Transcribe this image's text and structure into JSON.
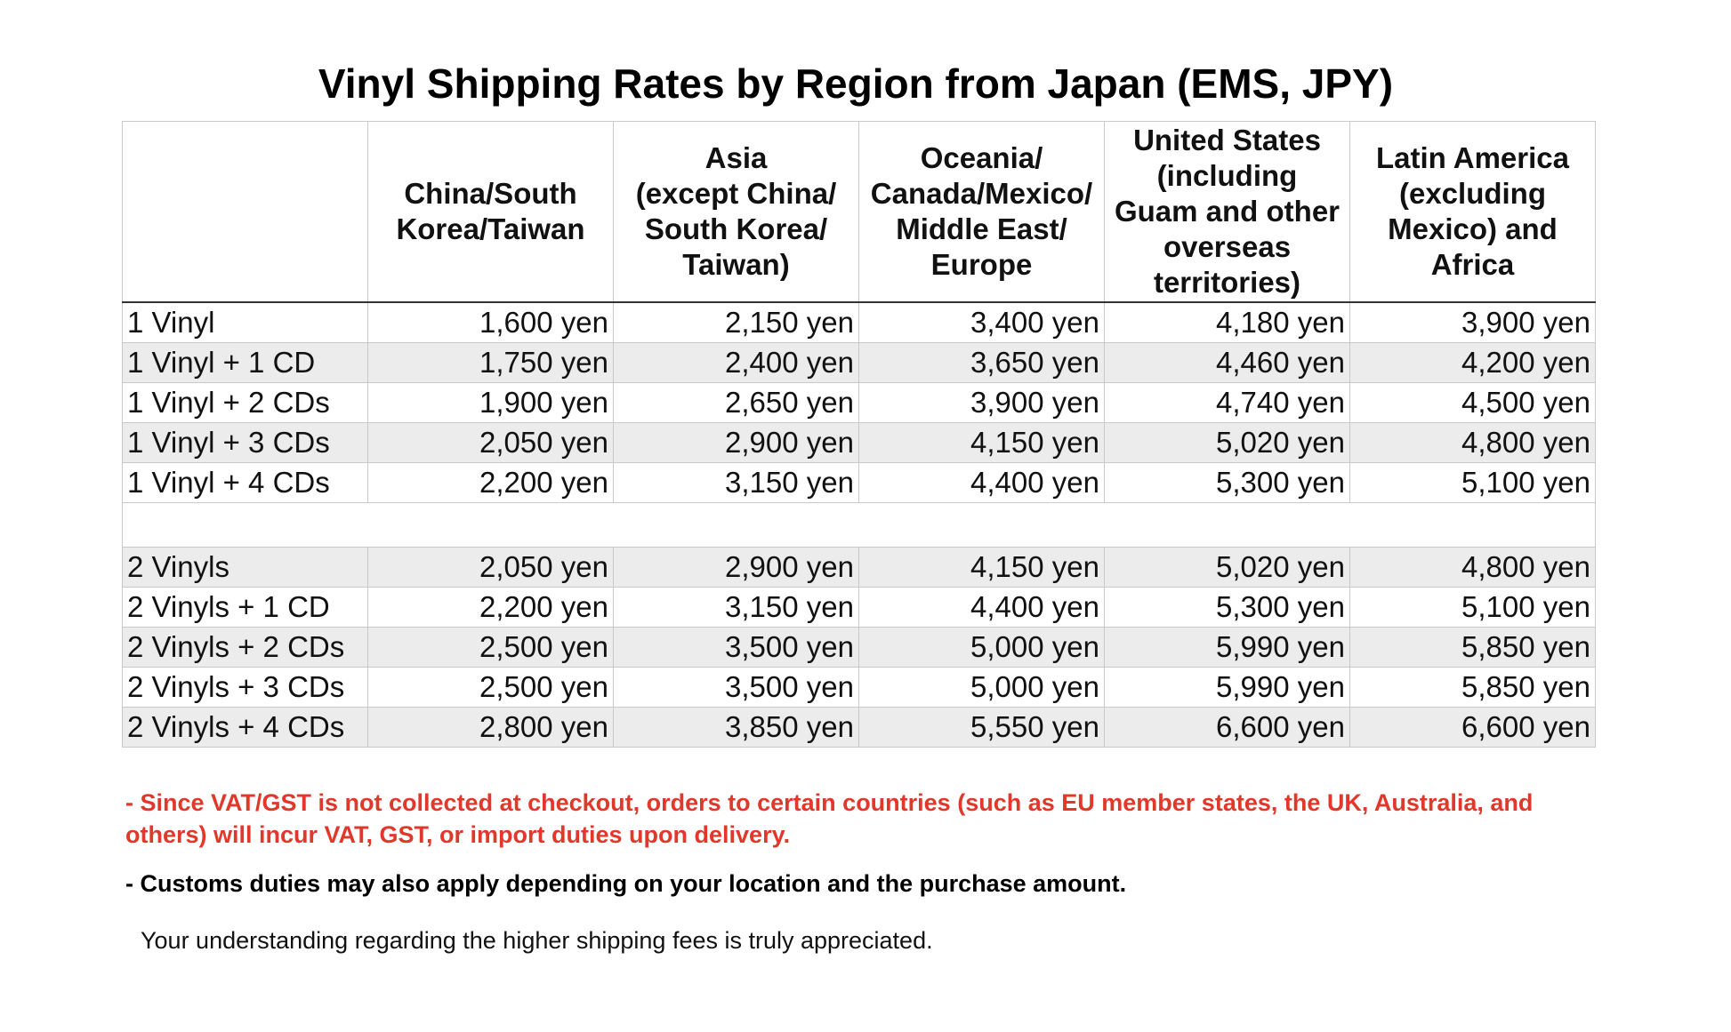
{
  "title": "Vinyl Shipping Rates by Region from Japan (EMS, JPY)",
  "columns": [
    "",
    "China/South\nKorea/Taiwan",
    "Asia\n(except China/\nSouth Korea/\nTaiwan)",
    "Oceania/\nCanada/Mexico/\nMiddle East/\nEurope",
    "United States\n(including\nGuam and other\noverseas\nterritories)",
    "Latin America\n(excluding\nMexico) and\nAfrica"
  ],
  "rows": [
    {
      "label": "1 Vinyl",
      "values": [
        "1,600 yen",
        "2,150 yen",
        "3,400 yen",
        "4,180 yen",
        "3,900 yen"
      ]
    },
    {
      "label": "1 Vinyl + 1 CD",
      "values": [
        "1,750 yen",
        "2,400 yen",
        "3,650 yen",
        "4,460 yen",
        "4,200 yen"
      ]
    },
    {
      "label": "1 Vinyl + 2 CDs",
      "values": [
        "1,900 yen",
        "2,650 yen",
        "3,900 yen",
        "4,740 yen",
        "4,500 yen"
      ]
    },
    {
      "label": "1 Vinyl + 3 CDs",
      "values": [
        "2,050 yen",
        "2,900 yen",
        "4,150 yen",
        "5,020 yen",
        "4,800 yen"
      ]
    },
    {
      "label": "1 Vinyl + 4 CDs",
      "values": [
        "2,200 yen",
        "3,150 yen",
        "4,400 yen",
        "5,300 yen",
        "5,100 yen"
      ]
    },
    {
      "label": "",
      "values": [
        "",
        "",
        "",
        "",
        ""
      ]
    },
    {
      "label": "2 Vinyls",
      "values": [
        "2,050 yen",
        "2,900 yen",
        "4,150 yen",
        "5,020 yen",
        "4,800 yen"
      ]
    },
    {
      "label": "2 Vinyls + 1 CD",
      "values": [
        "2,200 yen",
        "3,150 yen",
        "4,400 yen",
        "5,300 yen",
        "5,100 yen"
      ]
    },
    {
      "label": "2 Vinyls + 2 CDs",
      "values": [
        "2,500 yen",
        "3,500 yen",
        "5,000 yen",
        "5,990 yen",
        "5,850 yen"
      ]
    },
    {
      "label": "2 Vinyls + 3 CDs",
      "values": [
        "2,500 yen",
        "3,500 yen",
        "5,000 yen",
        "5,990 yen",
        "5,850 yen"
      ]
    },
    {
      "label": "2 Vinyls + 4 CDs",
      "values": [
        "2,800 yen",
        "3,850 yen",
        "5,550 yen",
        "6,600 yen",
        "6,600 yen"
      ]
    }
  ],
  "notes": {
    "vat": "- Since VAT/GST is not collected at checkout, orders to certain countries (such as EU member states, the UK, Australia, and others) will incur VAT, GST, or import duties upon delivery.",
    "customs": "- Customs duties may also apply depending on your location and the purchase amount.",
    "thanks": "Your understanding regarding the higher shipping fees is truly appreciated."
  },
  "colors": {
    "warning_text": "#e0382b",
    "row_shade": "#ececec",
    "grid_line": "#c9c9c9"
  }
}
